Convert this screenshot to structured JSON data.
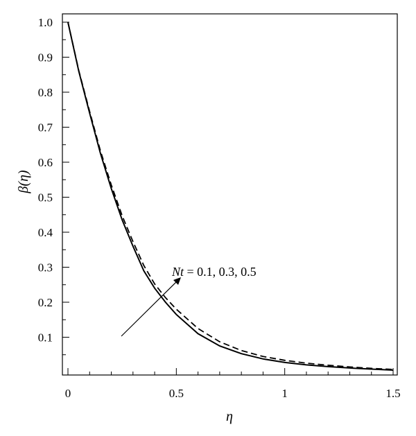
{
  "chart_data": {
    "type": "line",
    "xlabel": "η",
    "ylabel": "β(η)",
    "xlim": [
      0,
      1.5
    ],
    "ylim": [
      0,
      1.0
    ],
    "x_ticks": [
      "0",
      "0.5",
      "1",
      "1.5"
    ],
    "y_ticks": [
      "0.1",
      "0.2",
      "0.3",
      "0.4",
      "0.5",
      "0.6",
      "0.7",
      "0.8",
      "0.9",
      "1.0"
    ],
    "grid": false,
    "annotation": {
      "symbol": "Nt",
      "text": " = 0.1, 0.3, 0.5"
    },
    "series": [
      {
        "style": "solid",
        "x": [
          0,
          0.05,
          0.1,
          0.15,
          0.2,
          0.25,
          0.3,
          0.35,
          0.4,
          0.45,
          0.5,
          0.6,
          0.7,
          0.8,
          0.9,
          1.0,
          1.1,
          1.2,
          1.3,
          1.4,
          1.5
        ],
        "values": [
          1.0,
          0.86,
          0.74,
          0.625,
          0.525,
          0.435,
          0.36,
          0.29,
          0.24,
          0.2,
          0.165,
          0.11,
          0.075,
          0.053,
          0.038,
          0.028,
          0.021,
          0.016,
          0.012,
          0.009,
          0.006
        ]
      },
      {
        "style": "dashed",
        "x": [
          0,
          0.05,
          0.1,
          0.15,
          0.2,
          0.25,
          0.3,
          0.35,
          0.4,
          0.45,
          0.5,
          0.6,
          0.7,
          0.8,
          0.9,
          1.0,
          1.1,
          1.2,
          1.3,
          1.4,
          1.5
        ],
        "values": [
          1.0,
          0.862,
          0.745,
          0.632,
          0.535,
          0.447,
          0.373,
          0.305,
          0.252,
          0.213,
          0.18,
          0.125,
          0.087,
          0.062,
          0.045,
          0.034,
          0.026,
          0.02,
          0.015,
          0.011,
          0.008
        ]
      }
    ]
  }
}
